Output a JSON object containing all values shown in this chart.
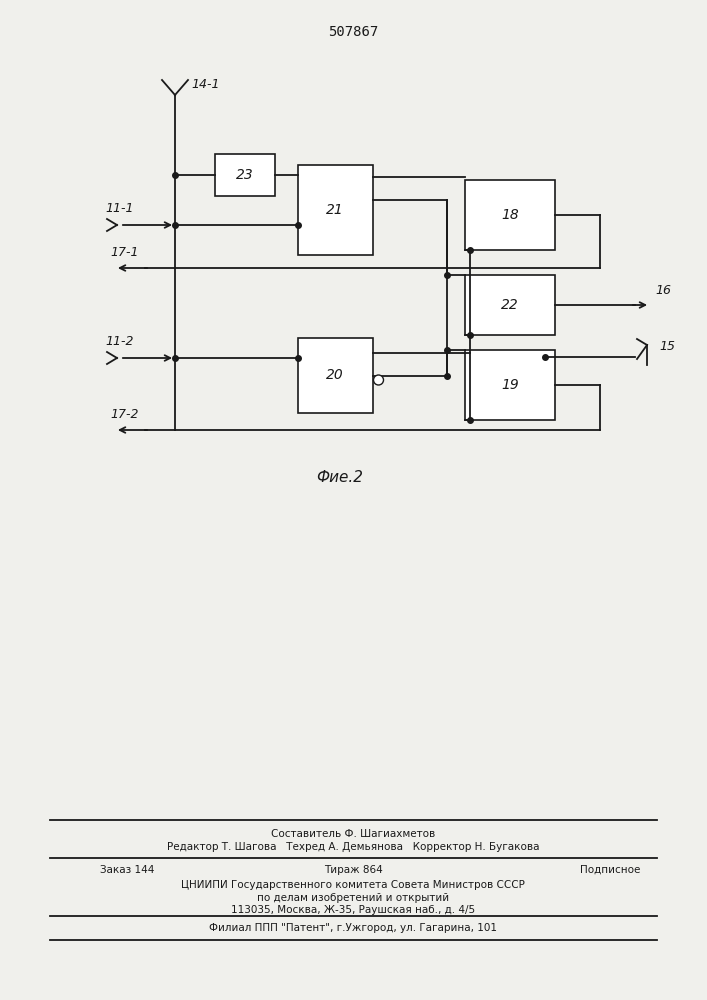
{
  "title": "507867",
  "fig_label": "Фие.2",
  "bg_color": "#f0f0ec",
  "line_color": "#1a1a1a",
  "footer": {
    "line1": "Составитель Ф. Шагиахметов",
    "line2": "Редактор Т. Шагова   Техред А. Демьянова   Корректор Н. Бугакова",
    "line3_left": "Заказ 144",
    "line3_mid": "Тираж 864",
    "line3_right": "Подписное",
    "line4": "ЦНИИПИ Государственного комитета Совета Министров СССР",
    "line5": "по делам изобретений и открытий",
    "line6": "113035, Москва, Ж-35, Раушская наб., д. 4/5",
    "line7": "Филиал ППП \"Патент\", г.Ужгород, ул. Гагарина, 101"
  }
}
